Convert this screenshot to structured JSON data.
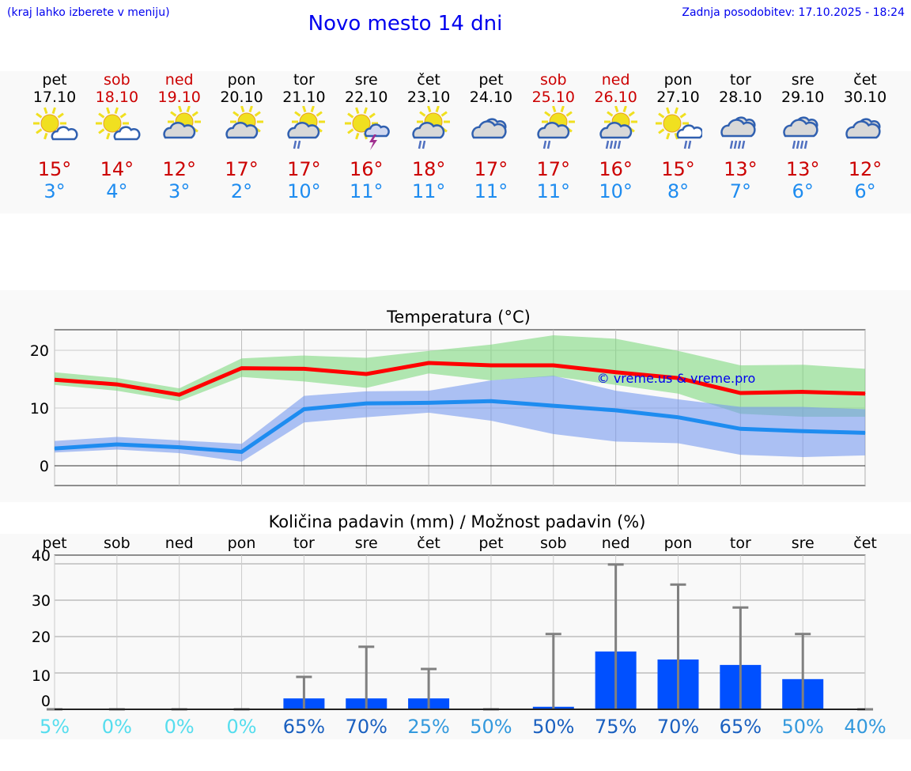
{
  "header": {
    "hint": "(kraj lahko izberete v meniju)",
    "title": "Novo mesto 14 dni",
    "updated": "Zadnja posodobitev: 17.10.2025 - 18:24"
  },
  "colors": {
    "weekday": "#000000",
    "weekend": "#cc0000",
    "max": "#cc0000",
    "min": "#1e8cf0",
    "bar": "#0050ff"
  },
  "days": [
    {
      "name": "pet",
      "date": "17.10",
      "weekend": false,
      "icon": "sun-cloud",
      "max": "15°",
      "min": "3°"
    },
    {
      "name": "sob",
      "date": "18.10",
      "weekend": true,
      "icon": "sun-cloud",
      "max": "14°",
      "min": "4°"
    },
    {
      "name": "ned",
      "date": "19.10",
      "weekend": true,
      "icon": "cloud-sun",
      "max": "12°",
      "min": "3°"
    },
    {
      "name": "pon",
      "date": "20.10",
      "weekend": false,
      "icon": "cloud-sun",
      "max": "17°",
      "min": "2°"
    },
    {
      "name": "tor",
      "date": "21.10",
      "weekend": false,
      "icon": "cloud-sun-rain",
      "max": "17°",
      "min": "10°"
    },
    {
      "name": "sre",
      "date": "22.10",
      "weekend": false,
      "icon": "sun-thunder",
      "max": "16°",
      "min": "11°"
    },
    {
      "name": "čet",
      "date": "23.10",
      "weekend": false,
      "icon": "cloud-sun-rain",
      "max": "18°",
      "min": "11°"
    },
    {
      "name": "pet",
      "date": "24.10",
      "weekend": false,
      "icon": "cloudy",
      "max": "17°",
      "min": "11°"
    },
    {
      "name": "sob",
      "date": "25.10",
      "weekend": true,
      "icon": "cloud-sun-rain",
      "max": "17°",
      "min": "11°"
    },
    {
      "name": "ned",
      "date": "26.10",
      "weekend": true,
      "icon": "cloud-sun-heavy-rain",
      "max": "16°",
      "min": "10°"
    },
    {
      "name": "pon",
      "date": "27.10",
      "weekend": false,
      "icon": "sun-cloud-rain",
      "max": "15°",
      "min": "8°"
    },
    {
      "name": "tor",
      "date": "28.10",
      "weekend": false,
      "icon": "cloud-heavy-rain",
      "max": "13°",
      "min": "7°"
    },
    {
      "name": "sre",
      "date": "29.10",
      "weekend": false,
      "icon": "cloud-heavy-rain",
      "max": "13°",
      "min": "6°"
    },
    {
      "name": "čet",
      "date": "30.10",
      "weekend": false,
      "icon": "cloudy",
      "max": "12°",
      "min": "6°"
    }
  ],
  "chart_data": [
    {
      "type": "line",
      "title": "Temperatura (°C)",
      "watermark": "© vreme.us & vreme.pro",
      "ylim": [
        -3.4,
        23.5
      ],
      "yticks": [
        0,
        10,
        20
      ],
      "categories": [
        "17.10",
        "18.10",
        "19.10",
        "20.10",
        "21.10",
        "22.10",
        "23.10",
        "24.10",
        "25.10",
        "26.10",
        "27.10",
        "28.10",
        "29.10",
        "30.10"
      ],
      "series": [
        {
          "name": "max",
          "color": "#ff0000",
          "values": [
            14.9,
            14.1,
            12.3,
            16.9,
            16.8,
            15.9,
            17.8,
            17.4,
            17.4,
            16.2,
            15.2,
            12.6,
            12.8,
            12.5
          ],
          "band_low": [
            14.0,
            13.0,
            11.2,
            15.4,
            14.6,
            13.5,
            16.0,
            14.8,
            15.5,
            14.0,
            12.5,
            9.0,
            8.5,
            8.5
          ],
          "band_high": [
            16.2,
            15.2,
            13.4,
            18.6,
            19.1,
            18.7,
            19.9,
            21.0,
            22.6,
            22.0,
            19.9,
            17.4,
            17.5,
            16.8
          ],
          "band_color": "#7fd97f"
        },
        {
          "name": "min",
          "color": "#1e8cf0",
          "values": [
            3.0,
            3.7,
            3.2,
            2.4,
            9.8,
            10.8,
            10.9,
            11.2,
            10.4,
            9.6,
            8.4,
            6.4,
            6.0,
            5.7
          ],
          "band_low": [
            2.3,
            2.8,
            2.2,
            0.7,
            7.5,
            8.4,
            9.2,
            7.8,
            5.5,
            4.2,
            3.9,
            1.9,
            1.5,
            1.8
          ],
          "band_high": [
            4.3,
            5.0,
            4.4,
            3.8,
            12.1,
            12.9,
            13.0,
            14.8,
            15.6,
            13.0,
            11.5,
            10.2,
            10.2,
            9.8
          ],
          "band_color": "#7799ee"
        }
      ]
    },
    {
      "type": "bar",
      "title": "Količina padavin (mm) / Možnost padavin (%)",
      "ylim": [
        0,
        42.4
      ],
      "yticks": [
        0,
        10,
        20,
        30,
        40
      ],
      "categories": [
        "pet",
        "sob",
        "ned",
        "pon",
        "tor",
        "sre",
        "čet",
        "pet",
        "sob",
        "ned",
        "pon",
        "tor",
        "sre",
        "čet"
      ],
      "values": [
        0,
        0,
        0,
        0,
        3,
        3,
        3,
        0,
        0.7,
        15.9,
        13.7,
        12.2,
        8.3,
        0
      ],
      "max_values": [
        0,
        0,
        0,
        0,
        8.9,
        17.2,
        11.1,
        0,
        20.7,
        39.8,
        34.3,
        28,
        20.7,
        0
      ],
      "probabilities": [
        "5%",
        "0%",
        "0%",
        "0%",
        "65%",
        "70%",
        "25%",
        "50%",
        "50%",
        "75%",
        "70%",
        "65%",
        "50%",
        "40%"
      ],
      "probability_colors": [
        "#55ddee",
        "#55ddee",
        "#55ddee",
        "#55ddee",
        "#1a60c0",
        "#1a60c0",
        "#3399dd",
        "#3399dd",
        "#1a60c0",
        "#1a60c0",
        "#1a60c0",
        "#1a60c0",
        "#3399dd",
        "#3399dd"
      ]
    }
  ]
}
